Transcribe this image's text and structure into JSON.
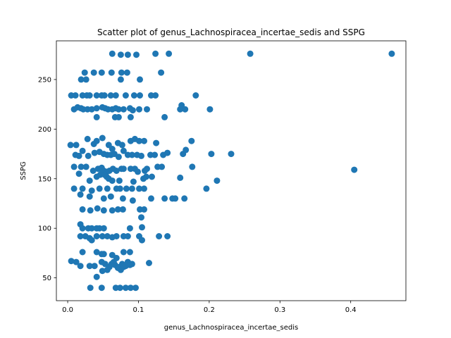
{
  "chart_data": {
    "type": "scatter",
    "title": "Scatter plot of genus_Lachnospiracea_incertae_sedis and SSPG",
    "xlabel": "genus_Lachnospiracea_incertae_sedis",
    "ylabel": "SSPG",
    "xlim": [
      -0.016,
      0.478
    ],
    "ylim": [
      27,
      289
    ],
    "xticks": [
      0.0,
      0.1,
      0.2,
      0.3,
      0.4
    ],
    "xtick_labels": [
      "0.0",
      "0.1",
      "0.2",
      "0.3",
      "0.4"
    ],
    "yticks": [
      50,
      100,
      150,
      200,
      250
    ],
    "ytick_labels": [
      "50",
      "100",
      "150",
      "200",
      "250"
    ],
    "grid": false,
    "marker_color": "#1f77b4",
    "series": [
      {
        "points": [
          [
            0.063,
            276
          ],
          [
            0.075,
            275
          ],
          [
            0.085,
            275
          ],
          [
            0.097,
            275
          ],
          [
            0.124,
            276
          ],
          [
            0.143,
            276
          ],
          [
            0.258,
            276
          ],
          [
            0.458,
            276
          ],
          [
            0.024,
            257
          ],
          [
            0.037,
            257
          ],
          [
            0.048,
            257
          ],
          [
            0.062,
            257
          ],
          [
            0.076,
            257
          ],
          [
            0.084,
            257
          ],
          [
            0.132,
            257
          ],
          [
            0.019,
            250
          ],
          [
            0.026,
            250
          ],
          [
            0.075,
            250
          ],
          [
            0.102,
            250
          ],
          [
            0.005,
            234
          ],
          [
            0.011,
            234
          ],
          [
            0.021,
            234
          ],
          [
            0.027,
            234
          ],
          [
            0.031,
            234
          ],
          [
            0.041,
            234
          ],
          [
            0.048,
            234
          ],
          [
            0.052,
            234
          ],
          [
            0.061,
            234
          ],
          [
            0.068,
            234
          ],
          [
            0.082,
            234
          ],
          [
            0.094,
            234
          ],
          [
            0.102,
            234
          ],
          [
            0.118,
            234
          ],
          [
            0.124,
            234
          ],
          [
            0.181,
            234
          ],
          [
            0.009,
            220
          ],
          [
            0.014,
            222
          ],
          [
            0.019,
            221
          ],
          [
            0.022,
            220
          ],
          [
            0.028,
            220
          ],
          [
            0.034,
            220
          ],
          [
            0.041,
            221
          ],
          [
            0.049,
            222
          ],
          [
            0.053,
            221
          ],
          [
            0.057,
            220
          ],
          [
            0.063,
            220
          ],
          [
            0.068,
            221
          ],
          [
            0.072,
            220
          ],
          [
            0.079,
            220
          ],
          [
            0.088,
            221
          ],
          [
            0.092,
            219
          ],
          [
            0.101,
            220
          ],
          [
            0.112,
            220
          ],
          [
            0.159,
            220
          ],
          [
            0.161,
            224
          ],
          [
            0.166,
            220
          ],
          [
            0.201,
            220
          ],
          [
            0.041,
            212
          ],
          [
            0.067,
            212
          ],
          [
            0.072,
            212
          ],
          [
            0.089,
            212
          ],
          [
            0.137,
            212
          ],
          [
            0.004,
            184
          ],
          [
            0.012,
            184
          ],
          [
            0.028,
            190
          ],
          [
            0.037,
            185
          ],
          [
            0.041,
            188
          ],
          [
            0.049,
            191
          ],
          [
            0.058,
            184
          ],
          [
            0.063,
            180
          ],
          [
            0.071,
            186
          ],
          [
            0.077,
            184
          ],
          [
            0.089,
            188
          ],
          [
            0.095,
            190
          ],
          [
            0.101,
            188
          ],
          [
            0.108,
            188
          ],
          [
            0.125,
            186
          ],
          [
            0.175,
            188
          ],
          [
            0.011,
            174
          ],
          [
            0.016,
            173
          ],
          [
            0.021,
            178
          ],
          [
            0.029,
            173
          ],
          [
            0.038,
            176
          ],
          [
            0.045,
            177
          ],
          [
            0.051,
            175
          ],
          [
            0.056,
            174
          ],
          [
            0.061,
            174
          ],
          [
            0.066,
            175
          ],
          [
            0.072,
            172
          ],
          [
            0.079,
            178
          ],
          [
            0.085,
            174
          ],
          [
            0.091,
            174
          ],
          [
            0.098,
            174
          ],
          [
            0.104,
            173
          ],
          [
            0.117,
            174
          ],
          [
            0.123,
            174
          ],
          [
            0.135,
            174
          ],
          [
            0.141,
            176
          ],
          [
            0.163,
            175
          ],
          [
            0.167,
            179
          ],
          [
            0.203,
            175
          ],
          [
            0.231,
            175
          ],
          [
            0.009,
            162
          ],
          [
            0.019,
            162
          ],
          [
            0.026,
            162
          ],
          [
            0.036,
            158
          ],
          [
            0.043,
            160
          ],
          [
            0.048,
            161
          ],
          [
            0.051,
            158
          ],
          [
            0.055,
            157
          ],
          [
            0.059,
            158
          ],
          [
            0.064,
            160
          ],
          [
            0.069,
            158
          ],
          [
            0.076,
            160
          ],
          [
            0.079,
            160
          ],
          [
            0.089,
            160
          ],
          [
            0.095,
            160
          ],
          [
            0.099,
            157
          ],
          [
            0.109,
            158
          ],
          [
            0.112,
            160
          ],
          [
            0.127,
            162
          ],
          [
            0.133,
            162
          ],
          [
            0.176,
            162
          ],
          [
            0.405,
            159
          ],
          [
            0.016,
            155
          ],
          [
            0.031,
            148
          ],
          [
            0.041,
            152
          ],
          [
            0.046,
            154
          ],
          [
            0.049,
            156
          ],
          [
            0.052,
            154
          ],
          [
            0.055,
            152
          ],
          [
            0.058,
            150
          ],
          [
            0.063,
            148
          ],
          [
            0.073,
            148
          ],
          [
            0.093,
            147
          ],
          [
            0.107,
            150
          ],
          [
            0.111,
            152
          ],
          [
            0.119,
            152
          ],
          [
            0.159,
            151
          ],
          [
            0.211,
            148
          ],
          [
            0.009,
            140
          ],
          [
            0.021,
            140
          ],
          [
            0.034,
            138
          ],
          [
            0.045,
            140
          ],
          [
            0.056,
            140
          ],
          [
            0.069,
            140
          ],
          [
            0.074,
            140
          ],
          [
            0.083,
            140
          ],
          [
            0.091,
            140
          ],
          [
            0.101,
            140
          ],
          [
            0.108,
            140
          ],
          [
            0.196,
            140
          ],
          [
            0.018,
            134
          ],
          [
            0.031,
            132
          ],
          [
            0.051,
            130
          ],
          [
            0.061,
            132
          ],
          [
            0.078,
            130
          ],
          [
            0.092,
            128
          ],
          [
            0.118,
            130
          ],
          [
            0.137,
            130
          ],
          [
            0.148,
            130
          ],
          [
            0.152,
            130
          ],
          [
            0.165,
            130
          ],
          [
            0.021,
            119
          ],
          [
            0.032,
            118
          ],
          [
            0.042,
            120
          ],
          [
            0.051,
            118
          ],
          [
            0.063,
            118
          ],
          [
            0.071,
            119
          ],
          [
            0.078,
            119
          ],
          [
            0.102,
            119
          ],
          [
            0.108,
            119
          ],
          [
            0.104,
            111
          ],
          [
            0.018,
            104
          ],
          [
            0.021,
            100
          ],
          [
            0.029,
            100
          ],
          [
            0.034,
            100
          ],
          [
            0.041,
            100
          ],
          [
            0.045,
            100
          ],
          [
            0.051,
            100
          ],
          [
            0.088,
            100
          ],
          [
            0.105,
            101
          ],
          [
            0.018,
            92
          ],
          [
            0.025,
            92
          ],
          [
            0.031,
            90
          ],
          [
            0.034,
            88
          ],
          [
            0.041,
            92
          ],
          [
            0.049,
            92
          ],
          [
            0.056,
            92
          ],
          [
            0.063,
            91
          ],
          [
            0.069,
            92
          ],
          [
            0.079,
            92
          ],
          [
            0.085,
            92
          ],
          [
            0.101,
            92
          ],
          [
            0.105,
            88
          ],
          [
            0.129,
            92
          ],
          [
            0.141,
            92
          ],
          [
            0.021,
            76
          ],
          [
            0.041,
            76
          ],
          [
            0.048,
            74
          ],
          [
            0.051,
            74
          ],
          [
            0.063,
            73
          ],
          [
            0.079,
            76
          ],
          [
            0.088,
            76
          ],
          [
            0.005,
            67
          ],
          [
            0.012,
            66
          ],
          [
            0.018,
            62
          ],
          [
            0.031,
            62
          ],
          [
            0.038,
            62
          ],
          [
            0.048,
            66
          ],
          [
            0.049,
            57
          ],
          [
            0.053,
            64
          ],
          [
            0.056,
            58
          ],
          [
            0.059,
            61
          ],
          [
            0.062,
            64
          ],
          [
            0.065,
            66
          ],
          [
            0.067,
            63
          ],
          [
            0.069,
            70
          ],
          [
            0.071,
            60
          ],
          [
            0.073,
            61
          ],
          [
            0.075,
            58
          ],
          [
            0.077,
            64
          ],
          [
            0.079,
            61
          ],
          [
            0.082,
            62
          ],
          [
            0.085,
            66
          ],
          [
            0.088,
            63
          ],
          [
            0.091,
            64
          ],
          [
            0.115,
            65
          ],
          [
            0.041,
            51
          ],
          [
            0.032,
            40
          ],
          [
            0.048,
            40
          ],
          [
            0.068,
            40
          ],
          [
            0.074,
            40
          ],
          [
            0.082,
            40
          ],
          [
            0.089,
            40
          ],
          [
            0.096,
            40
          ]
        ]
      }
    ]
  }
}
